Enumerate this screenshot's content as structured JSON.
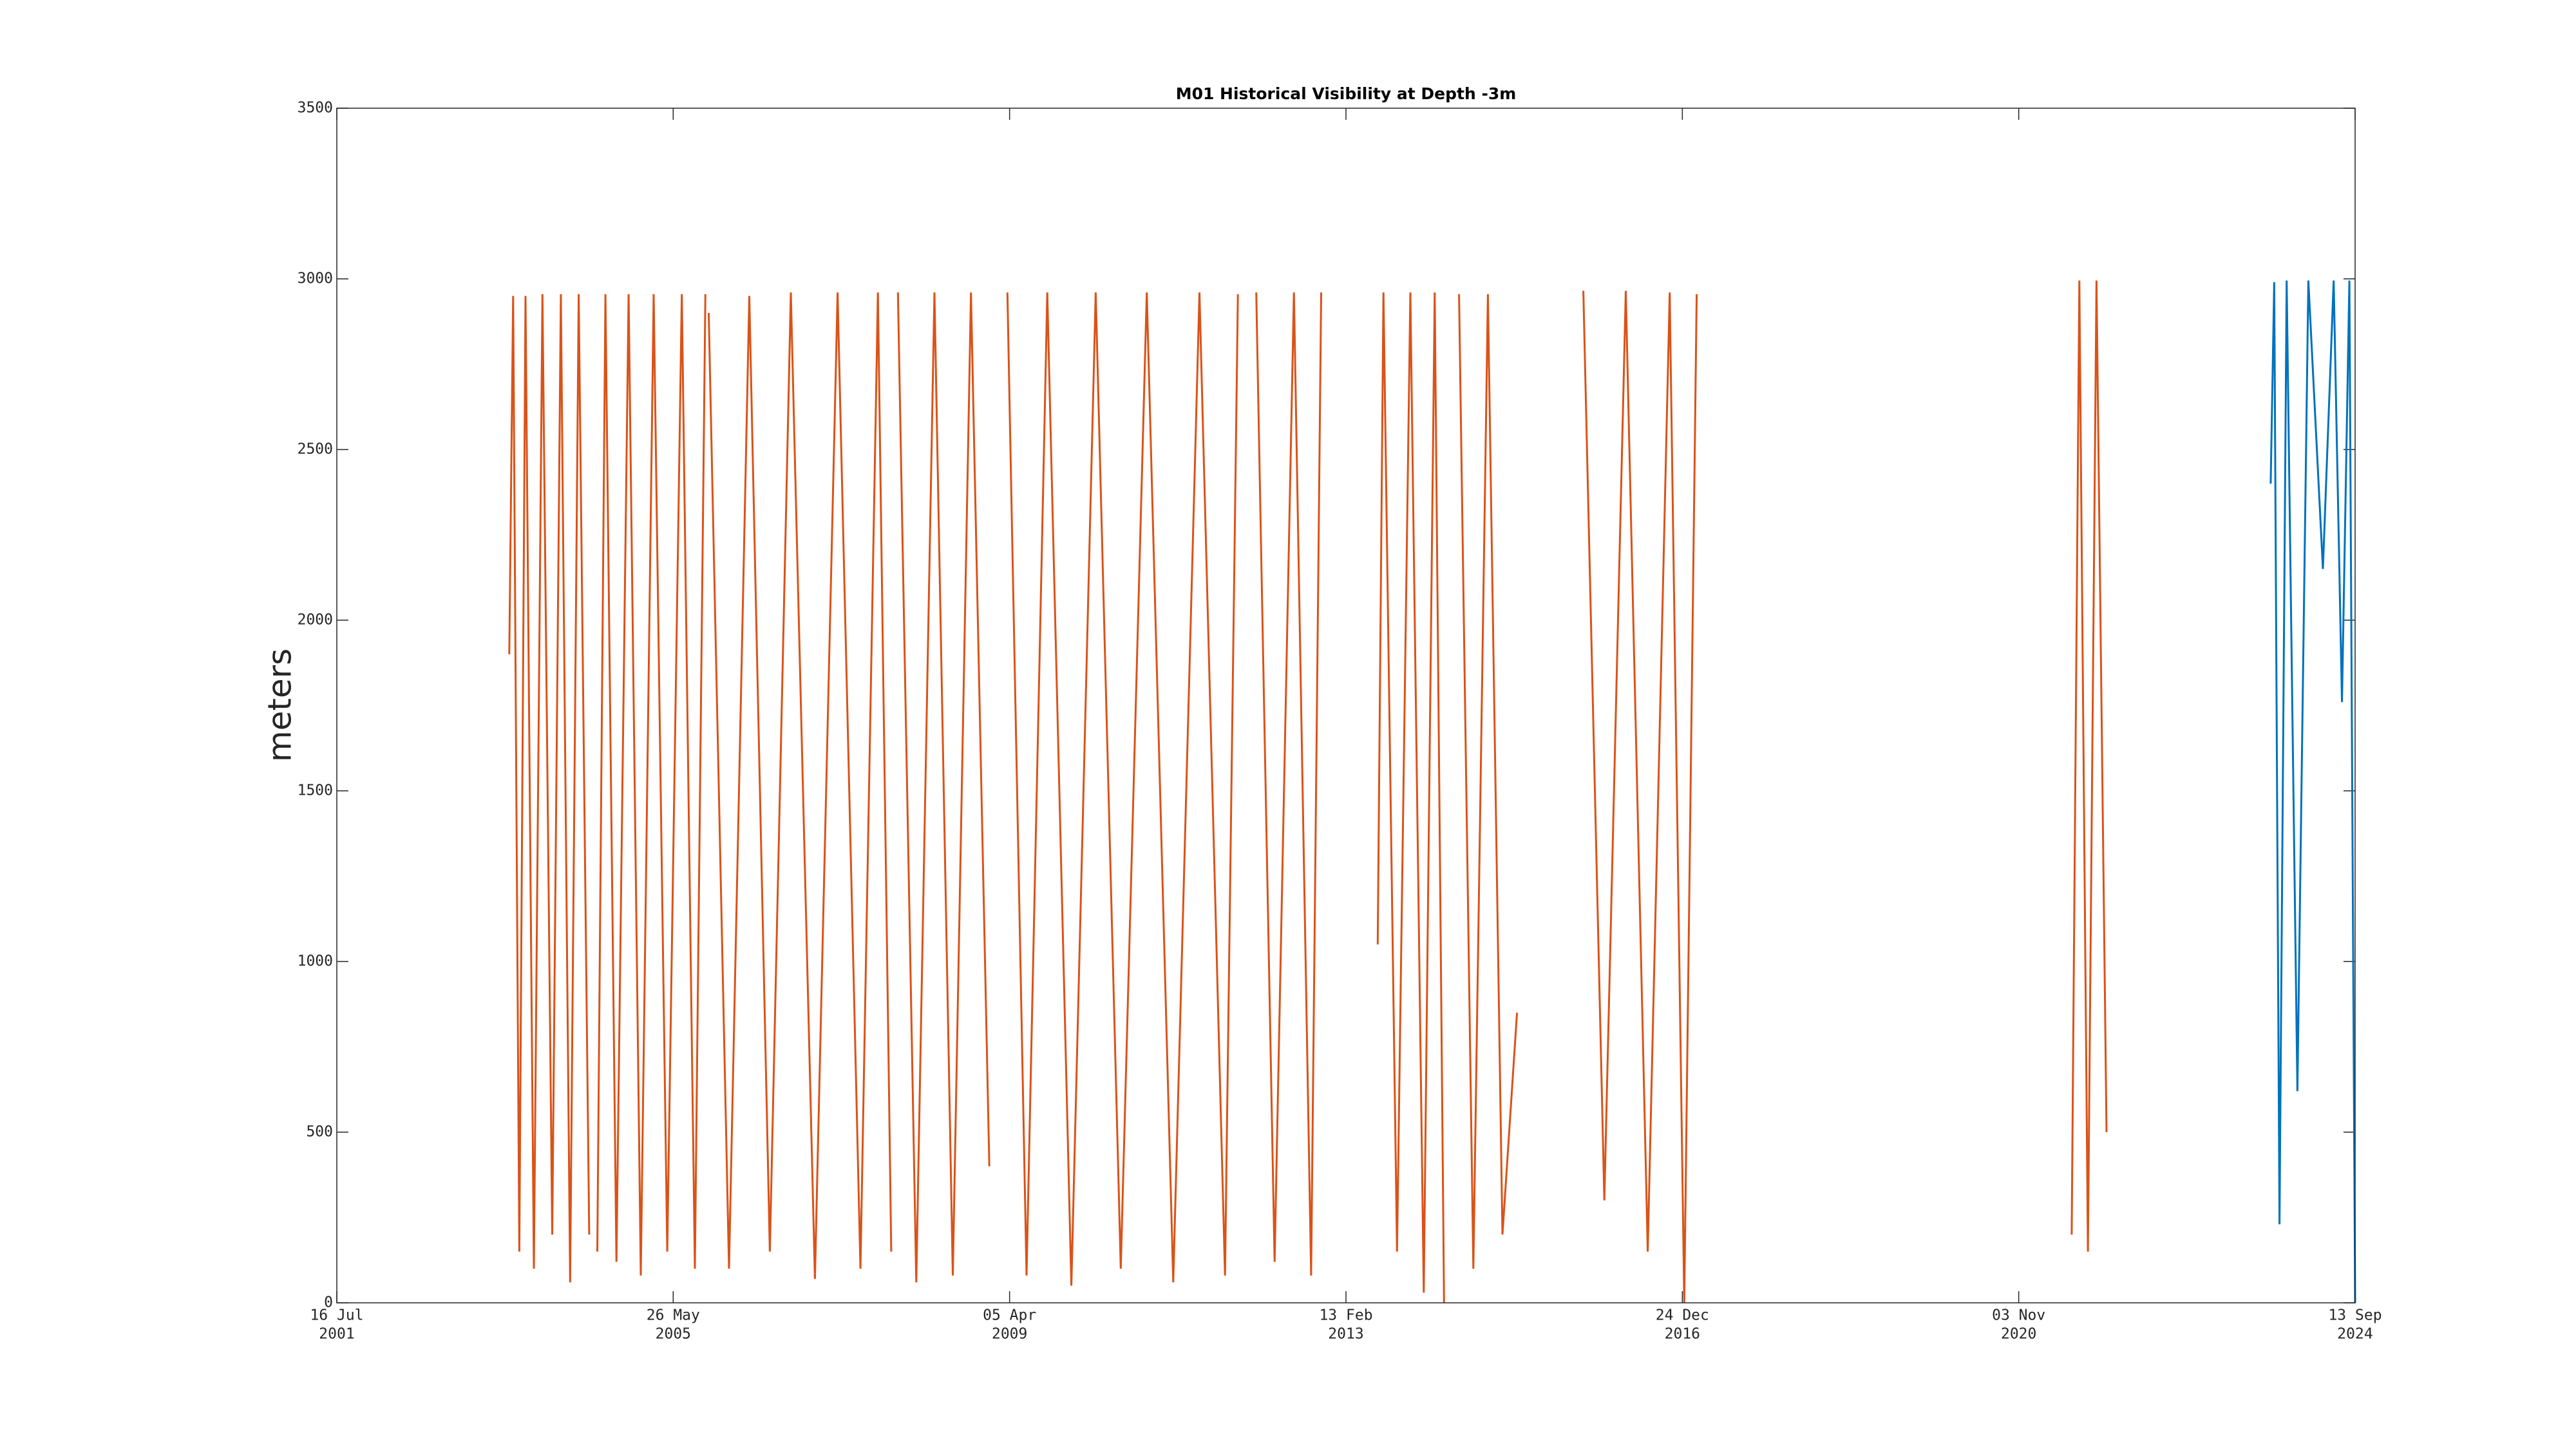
{
  "chart_data": {
    "type": "line",
    "title": "M01 Historical Visibility at Depth -3m",
    "y_label": "meters",
    "xlim": [
      "2001-07-16",
      "2024-09-13"
    ],
    "xticks": [
      {
        "value": "2001-07-16",
        "label": [
          "16 Jul",
          "2001"
        ]
      },
      {
        "value": "2005-05-26",
        "label": [
          "26 May",
          "2005"
        ]
      },
      {
        "value": "2009-04-05",
        "label": [
          "05 Apr",
          "2009"
        ]
      },
      {
        "value": "2013-02-13",
        "label": [
          "13 Feb",
          "2013"
        ]
      },
      {
        "value": "2016-12-24",
        "label": [
          "24 Dec",
          "2016"
        ]
      },
      {
        "value": "2020-11-03",
        "label": [
          "03 Nov",
          "2020"
        ]
      },
      {
        "value": "2024-09-13",
        "label": [
          "13 Sep",
          "2024"
        ]
      }
    ],
    "ylim": [
      0,
      3500
    ],
    "yticks": [
      0,
      500,
      1000,
      1500,
      2000,
      2500,
      3000,
      3500
    ],
    "grid": false,
    "series": [
      {
        "color": "#d95319",
        "x": [
          "2003-07-09",
          "2003-07-25",
          "2003-08-20",
          "2003-09-15",
          "2003-10-20",
          "2003-11-25",
          "2004-01-05",
          "2004-02-10",
          "2004-03-20",
          "2004-04-25",
          "2004-06-08",
          "2004-06-25",
          "2004-07-12",
          "2004-08-15",
          "2004-09-30",
          "2004-11-20",
          "2005-01-10",
          "2005-03-05",
          "2005-05-01",
          "2005-07-01",
          "2005-08-25",
          "2005-10-08",
          "2005-10-15",
          "2005-10-22",
          "2006-01-15",
          "2006-04-10",
          "2006-07-05",
          "2006-10-01",
          "2007-01-10",
          "2007-04-15",
          "2007-07-20",
          "2007-10-01",
          "2007-11-26",
          "2007-12-10",
          "2007-12-24",
          "2008-03-10",
          "2008-05-25",
          "2008-08-10",
          "2008-10-25",
          "2009-01-10",
          "2009-02-15",
          "2009-03-27",
          "2009-06-15",
          "2009-09-10",
          "2009-12-20",
          "2010-04-01",
          "2010-07-15",
          "2010-11-01",
          "2011-02-20",
          "2011-06-10",
          "2011-09-25",
          "2011-11-18",
          "2011-12-20",
          "2012-02-03",
          "2012-04-20",
          "2012-07-10",
          "2012-09-20",
          "2012-11-01",
          "2013-03-01",
          "2013-06-26",
          "2013-07-20",
          "2013-09-15",
          "2013-11-10",
          "2014-01-05",
          "2014-02-20",
          "2014-03-31",
          "2014-05-01",
          "2014-06-02",
          "2014-08-01",
          "2014-10-01",
          "2014-12-01",
          "2015-01-31",
          "2015-06-01",
          "2015-11-05",
          "2016-02-01",
          "2016-05-01",
          "2016-08-01",
          "2016-11-01",
          "2017-01-01",
          "2017-02-22",
          "2019-01-01",
          "2021-06-13",
          "2021-07-15",
          "2021-08-20",
          "2021-09-25",
          "2021-11-06"
        ],
        "values": [
          1900,
          2950,
          150,
          2950,
          100,
          2955,
          200,
          2955,
          60,
          2955,
          200,
          null,
          150,
          2955,
          120,
          2955,
          80,
          2955,
          150,
          2955,
          100,
          2955,
          null,
          2900,
          100,
          2950,
          150,
          2960,
          70,
          2960,
          100,
          2960,
          150,
          null,
          2960,
          60,
          2960,
          80,
          2960,
          400,
          null,
          2960,
          80,
          2960,
          50,
          2960,
          100,
          2960,
          60,
          2960,
          80,
          2955,
          null,
          2960,
          120,
          2960,
          80,
          2960,
          null,
          1050,
          2960,
          150,
          2960,
          30,
          2960,
          0,
          null,
          2955,
          100,
          2955,
          200,
          850,
          null,
          2965,
          300,
          2965,
          150,
          2960,
          0,
          2955,
          null,
          200,
          2995,
          150,
          2995,
          500
        ]
      },
      {
        "color": "#0072bd",
        "x": [
          "2023-09-25",
          "2023-10-10",
          "2023-11-01",
          "2023-12-01",
          "2024-01-15",
          "2024-03-01",
          "2024-05-01",
          "2024-06-15",
          "2024-07-20",
          "2024-08-20",
          "2024-09-13"
        ],
        "values": [
          2400,
          2990,
          230,
          2995,
          620,
          2995,
          2150,
          2995,
          1760,
          2995,
          0
        ]
      }
    ]
  }
}
